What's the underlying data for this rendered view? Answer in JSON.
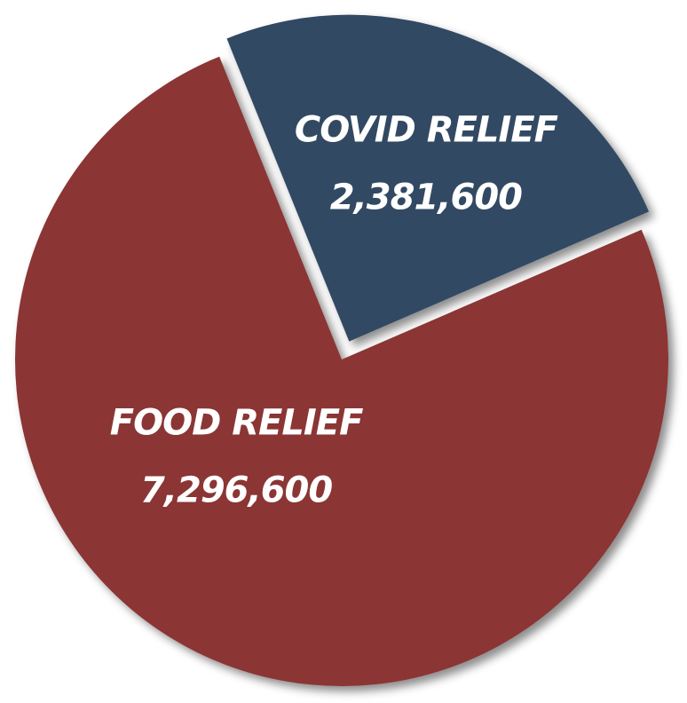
{
  "chart_data": {
    "type": "pie",
    "title": "",
    "legend": "none",
    "exploded_slice": "COVID RELIEF",
    "slices": [
      {
        "label": "COVID RELIEF",
        "value": 2381600,
        "value_label": "2,381,600",
        "color": "#324964"
      },
      {
        "label": "FOOD RELIEF",
        "value": 7296600,
        "value_label": "7,296,600",
        "color": "#8b3634"
      }
    ]
  }
}
